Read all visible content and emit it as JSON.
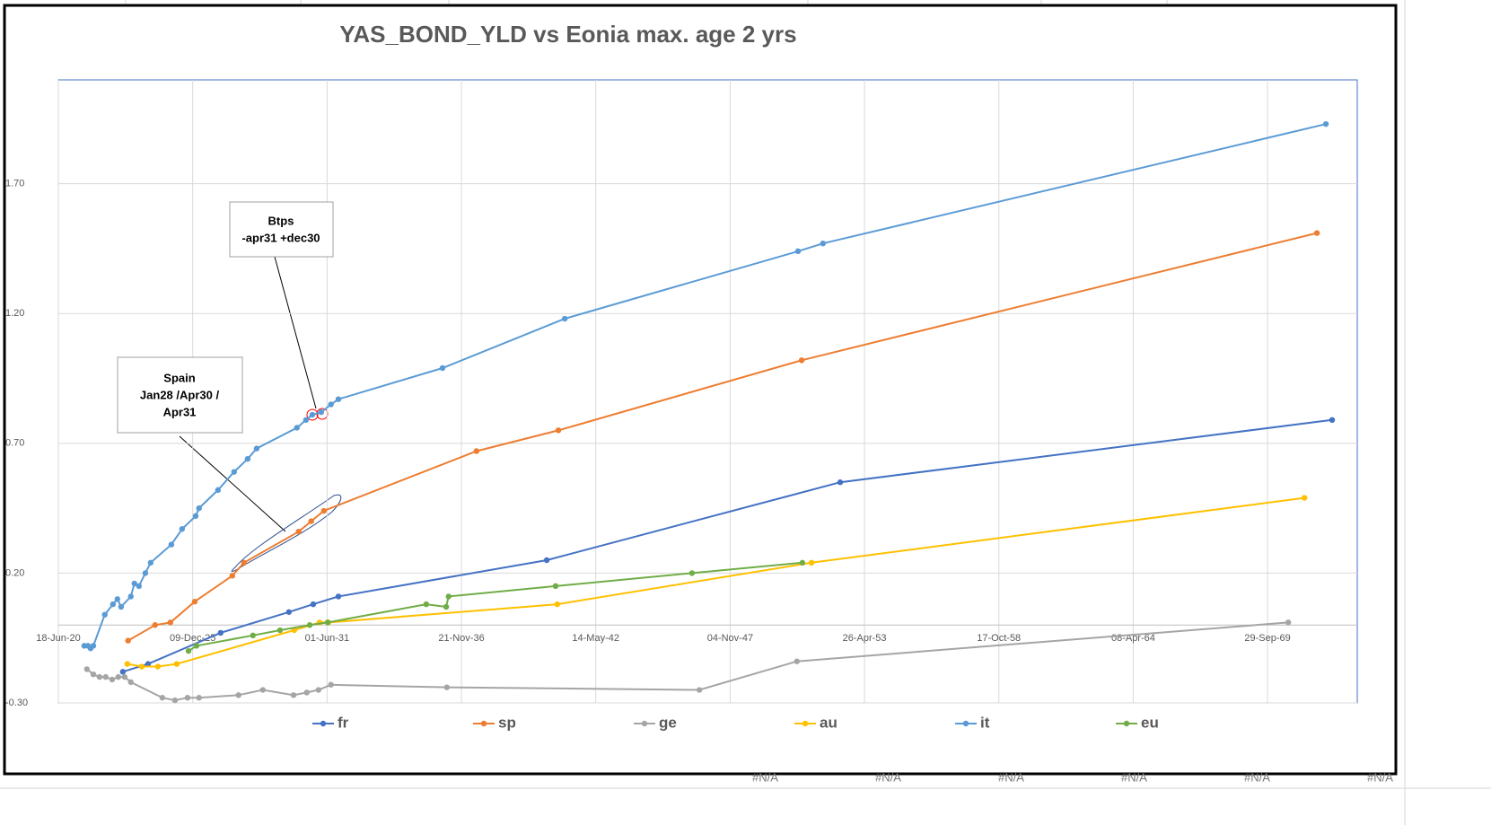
{
  "chart_data": {
    "type": "line",
    "title": "YAS_BOND_YLD vs Eonia max. age 2 yrs",
    "xlim": [
      "2020-06-18",
      "2073-05-26"
    ],
    "xticks": [
      {
        "value": "2020-06-18",
        "label": "18-Jun-20"
      },
      {
        "value": "2025-12-09",
        "label": "09-Dec-25"
      },
      {
        "value": "2031-06-01",
        "label": "01-Jun-31"
      },
      {
        "value": "2036-11-21",
        "label": "21-Nov-36"
      },
      {
        "value": "2042-05-14",
        "label": "14-May-42"
      },
      {
        "value": "2047-11-04",
        "label": "04-Nov-47"
      },
      {
        "value": "2053-04-26",
        "label": "26-Apr-53"
      },
      {
        "value": "2058-10-17",
        "label": "17-Oct-58"
      },
      {
        "value": "2064-04-08",
        "label": "08-Apr-64"
      },
      {
        "value": "2069-09-29",
        "label": "29-Sep-69"
      }
    ],
    "ylim": [
      -0.3,
      2.1
    ],
    "yticks": [
      {
        "value": -0.3,
        "label": "-0.30"
      },
      {
        "value": 0.2,
        "label": "0.20"
      },
      {
        "value": 0.7,
        "label": "0.70"
      },
      {
        "value": 1.2,
        "label": "1.20"
      },
      {
        "value": 1.7,
        "label": "1.70"
      }
    ],
    "grid": true,
    "legend": "bottom",
    "series": [
      {
        "name": "fr",
        "color": "#4472c4",
        "x": [
          "2023-02-03",
          "2024-02-14",
          "2027-01-29",
          "2029-11-10",
          "2030-11-07",
          "2031-11-17",
          "2040-05-14",
          "2052-04-29",
          "2072-05-17"
        ],
        "values": [
          -0.18,
          -0.15,
          -0.03,
          0.05,
          0.08,
          0.11,
          0.25,
          0.55,
          0.79
        ]
      },
      {
        "name": "sp",
        "color": "#ed7d31",
        "x": [
          "2023-04-22",
          "2024-05-28",
          "2025-01-11",
          "2026-01-08",
          "2027-07-22",
          "2028-01-11",
          "2030-04-04",
          "2030-10-08",
          "2031-04-15",
          "2037-07-04",
          "2040-11-03",
          "2050-10-04",
          "2071-10-04"
        ],
        "values": [
          -0.06,
          0.0,
          0.01,
          0.09,
          0.19,
          0.24,
          0.36,
          0.4,
          0.44,
          0.67,
          0.75,
          1.02,
          1.51
        ]
      },
      {
        "name": "ge",
        "color": "#a5a5a5",
        "x": [
          "2021-08-17",
          "2021-11-21",
          "2022-02-21",
          "2022-05-24",
          "2022-08-28",
          "2022-11-28",
          "2023-03-02",
          "2023-06-02",
          "2024-09-13",
          "2025-03-20",
          "2025-09-23",
          "2026-03-13",
          "2027-10-22",
          "2028-10-18",
          "2030-01-18",
          "2030-08-03",
          "2031-01-25",
          "2031-07-29",
          "2036-04-18",
          "2046-08-03",
          "2050-07-25",
          "2070-08-03"
        ],
        "values": [
          -0.17,
          -0.19,
          -0.2,
          -0.2,
          -0.21,
          -0.2,
          -0.2,
          -0.22,
          -0.28,
          -0.29,
          -0.28,
          -0.28,
          -0.27,
          -0.25,
          -0.27,
          -0.26,
          -0.25,
          -0.23,
          -0.24,
          -0.25,
          -0.14,
          0.01
        ]
      },
      {
        "name": "au",
        "color": "#ffc000",
        "x": [
          "2023-04-11",
          "2023-11-10",
          "2024-07-08",
          "2025-04-15",
          "2030-01-29",
          "2031-02-10",
          "2031-06-20",
          "2040-10-18",
          "2051-02-28",
          "2071-04-01"
        ],
        "values": [
          -0.15,
          -0.16,
          -0.16,
          -0.15,
          -0.02,
          0.01,
          0.01,
          0.08,
          0.24,
          0.49
        ]
      },
      {
        "name": "it",
        "color": "#5b9bd5",
        "x": [
          "2021-07-08",
          "2021-09-02",
          "2021-10-11",
          "2021-11-21",
          "2022-05-10",
          "2022-09-09",
          "2022-11-14",
          "2023-01-08",
          "2023-06-02",
          "2023-07-25",
          "2023-10-01",
          "2024-01-04",
          "2024-03-23",
          "2025-01-25",
          "2025-07-04",
          "2026-01-22",
          "2026-03-13",
          "2026-12-20",
          "2027-08-17",
          "2028-03-06",
          "2028-07-18",
          "2030-03-09",
          "2030-07-22",
          "2030-10-25",
          "2031-03-06",
          "2031-07-29",
          "2031-11-17",
          "2036-02-14",
          "2041-02-07",
          "2050-08-10",
          "2051-08-17",
          "2072-02-14"
        ],
        "values": [
          -0.08,
          -0.08,
          -0.09,
          -0.08,
          0.04,
          0.08,
          0.1,
          0.07,
          0.11,
          0.16,
          0.15,
          0.2,
          0.24,
          0.31,
          0.37,
          0.42,
          0.45,
          0.52,
          0.59,
          0.64,
          0.68,
          0.76,
          0.79,
          0.81,
          0.82,
          0.85,
          0.87,
          0.99,
          1.18,
          1.44,
          1.47,
          1.93
        ]
      },
      {
        "name": "eu",
        "color": "#70ad47",
        "x": [
          "2025-10-08",
          "2026-02-03",
          "2028-05-24",
          "2029-07-01",
          "2030-09-16",
          "2031-06-09",
          "2035-06-16",
          "2036-04-08",
          "2036-05-14",
          "2040-09-23",
          "2046-04-15",
          "2050-10-15"
        ],
        "values": [
          -0.1,
          -0.08,
          -0.04,
          -0.02,
          0.0,
          0.01,
          0.08,
          0.07,
          0.11,
          0.15,
          0.2,
          0.24
        ]
      }
    ],
    "annotations": [
      {
        "lines": [
          "Btps",
          "-apr31 +dec30"
        ]
      },
      {
        "lines": [
          "Spain",
          "Jan28 /Apr30 /",
          "Apr31"
        ]
      }
    ]
  },
  "sheet_cells": [
    "#N/A",
    "#N/A",
    "#N/A",
    "#N/A",
    "#N/A",
    "#N/A"
  ]
}
